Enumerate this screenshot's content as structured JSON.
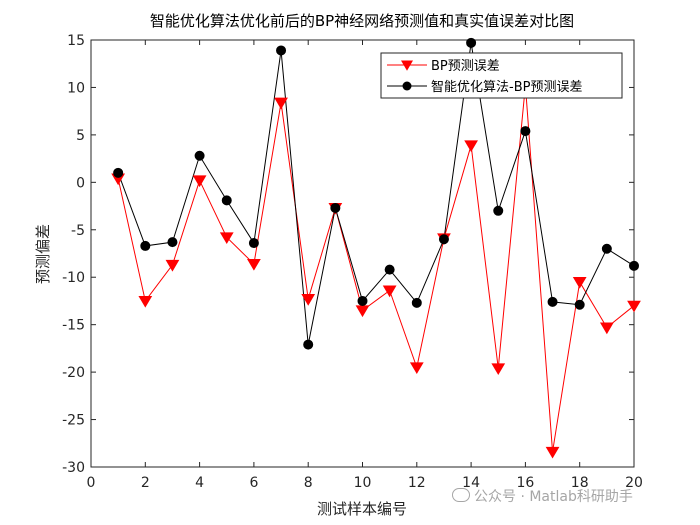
{
  "chart_data": {
    "type": "line",
    "title": "智能优化算法优化前后的BP神经网络预测值和真实值误差对比图",
    "xlabel": "测试样本编号",
    "ylabel": "预测偏差",
    "xlim": [
      0,
      20
    ],
    "ylim": [
      -30,
      15
    ],
    "xticks": [
      0,
      2,
      4,
      6,
      8,
      10,
      12,
      14,
      16,
      18,
      20
    ],
    "yticks": [
      -30,
      -25,
      -20,
      -15,
      -10,
      -5,
      0,
      5,
      10,
      15
    ],
    "grid": false,
    "legend_position": "top-right",
    "x": [
      1,
      2,
      3,
      4,
      5,
      6,
      7,
      8,
      9,
      10,
      11,
      12,
      13,
      14,
      15,
      16,
      17,
      18,
      19,
      20
    ],
    "series": [
      {
        "name": "BP预测误差",
        "color": "#ff0000",
        "marker": "triangle-down",
        "values": [
          0.4,
          -12.5,
          -8.7,
          0.2,
          -5.8,
          -8.6,
          8.4,
          -12.3,
          -2.7,
          -13.5,
          -11.4,
          -19.5,
          -5.9,
          3.9,
          -19.6,
          10.2,
          -28.4,
          -10.5,
          -15.3,
          -13.0
        ]
      },
      {
        "name": "智能优化算法-BP预测误差",
        "color": "#000000",
        "marker": "circle",
        "values": [
          1.0,
          -6.7,
          -6.3,
          2.8,
          -1.9,
          -6.4,
          13.9,
          -17.1,
          -2.7,
          -12.5,
          -9.2,
          -12.7,
          -6.0,
          14.7,
          -3.0,
          5.4,
          -12.6,
          -12.9,
          -7.0,
          -8.8
        ]
      }
    ]
  },
  "watermark": {
    "icon": "wechat-icon",
    "text": "公众号 · Matlab科研助手"
  }
}
